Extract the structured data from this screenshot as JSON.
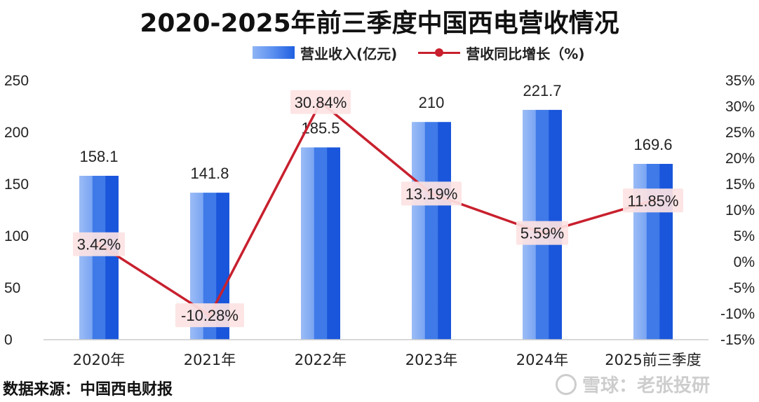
{
  "title": "2020-2025年前三季度中国西电营收情况",
  "legend": {
    "bar_label": "营业收入(亿元)",
    "line_label": "营收同比增长（%)"
  },
  "source": "数据来源：中国西电财报",
  "watermark": "雪球：老张投研",
  "colors": {
    "bar_light": "#8fb4f5",
    "bar_mid": "#5a8ff0",
    "bar_dark": "#1f5fe0",
    "line": "#c8202e",
    "label_bg": "#fde3e3"
  },
  "chart_data": {
    "type": "bar",
    "categories": [
      "2020年",
      "2021年",
      "2022年",
      "2023年",
      "2024年",
      "2025前三季度"
    ],
    "series": [
      {
        "name": "营业收入(亿元)",
        "type": "bar",
        "axis": "left",
        "values": [
          158.1,
          141.8,
          185.5,
          210,
          221.7,
          169.6
        ],
        "labels": [
          "158.1",
          "141.8",
          "185.5",
          "210",
          "221.7",
          "169.6"
        ]
      },
      {
        "name": "营收同比增长（%)",
        "type": "line",
        "axis": "right",
        "values": [
          3.42,
          -10.28,
          30.84,
          13.19,
          5.59,
          11.85
        ],
        "labels": [
          "3.42%",
          "-10.28%",
          "30.84%",
          "13.19%",
          "5.59%",
          "11.85%"
        ]
      }
    ],
    "left_axis": {
      "ylim": [
        0,
        250
      ],
      "ticks": [
        "0",
        "50",
        "100",
        "150",
        "200",
        "250"
      ],
      "tick_values": [
        0,
        50,
        100,
        150,
        200,
        250
      ]
    },
    "right_axis": {
      "ylim": [
        -15,
        35
      ],
      "ticks": [
        "-15%",
        "-10%",
        "-5%",
        "0%",
        "5%",
        "10%",
        "15%",
        "20%",
        "25%",
        "30%",
        "35%"
      ],
      "tick_values": [
        -15,
        -10,
        -5,
        0,
        5,
        10,
        15,
        20,
        25,
        30,
        35
      ]
    },
    "grid": false,
    "legend_position": "top"
  }
}
